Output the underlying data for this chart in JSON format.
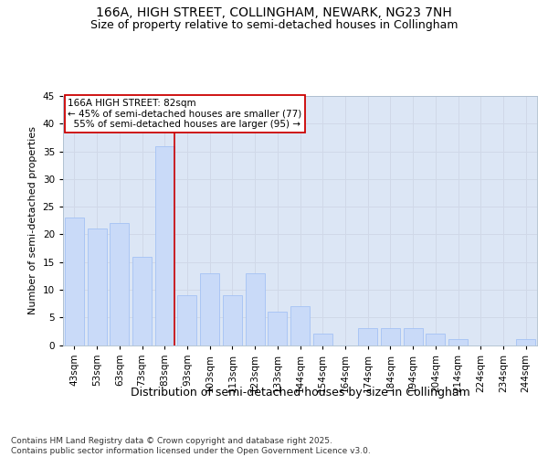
{
  "title": "166A, HIGH STREET, COLLINGHAM, NEWARK, NG23 7NH",
  "subtitle": "Size of property relative to semi-detached houses in Collingham",
  "xlabel": "Distribution of semi-detached houses by size in Collingham",
  "ylabel": "Number of semi-detached properties",
  "categories": [
    "43sqm",
    "53sqm",
    "63sqm",
    "73sqm",
    "83sqm",
    "93sqm",
    "103sqm",
    "113sqm",
    "123sqm",
    "133sqm",
    "144sqm",
    "154sqm",
    "164sqm",
    "174sqm",
    "184sqm",
    "194sqm",
    "204sqm",
    "214sqm",
    "224sqm",
    "234sqm",
    "244sqm"
  ],
  "values": [
    23,
    21,
    22,
    16,
    36,
    9,
    13,
    9,
    13,
    6,
    7,
    2,
    0,
    3,
    3,
    3,
    2,
    1,
    0,
    0,
    1
  ],
  "bar_color": "#c9daf8",
  "bar_edge_color": "#a4c2f4",
  "vline_bar_index": 4,
  "vline_color": "#cc0000",
  "annotation_text": "166A HIGH STREET: 82sqm\n← 45% of semi-detached houses are smaller (77)\n  55% of semi-detached houses are larger (95) →",
  "annotation_box_color": "#ffffff",
  "annotation_box_edge_color": "#cc0000",
  "ylim": [
    0,
    45
  ],
  "yticks": [
    0,
    5,
    10,
    15,
    20,
    25,
    30,
    35,
    40,
    45
  ],
  "grid_color": "#d0d8e8",
  "bg_color": "#dce6f5",
  "footer_text": "Contains HM Land Registry data © Crown copyright and database right 2025.\nContains public sector information licensed under the Open Government Licence v3.0.",
  "title_fontsize": 10,
  "subtitle_fontsize": 9,
  "xlabel_fontsize": 9,
  "ylabel_fontsize": 8,
  "tick_fontsize": 7.5,
  "annotation_fontsize": 7.5,
  "footer_fontsize": 6.5
}
